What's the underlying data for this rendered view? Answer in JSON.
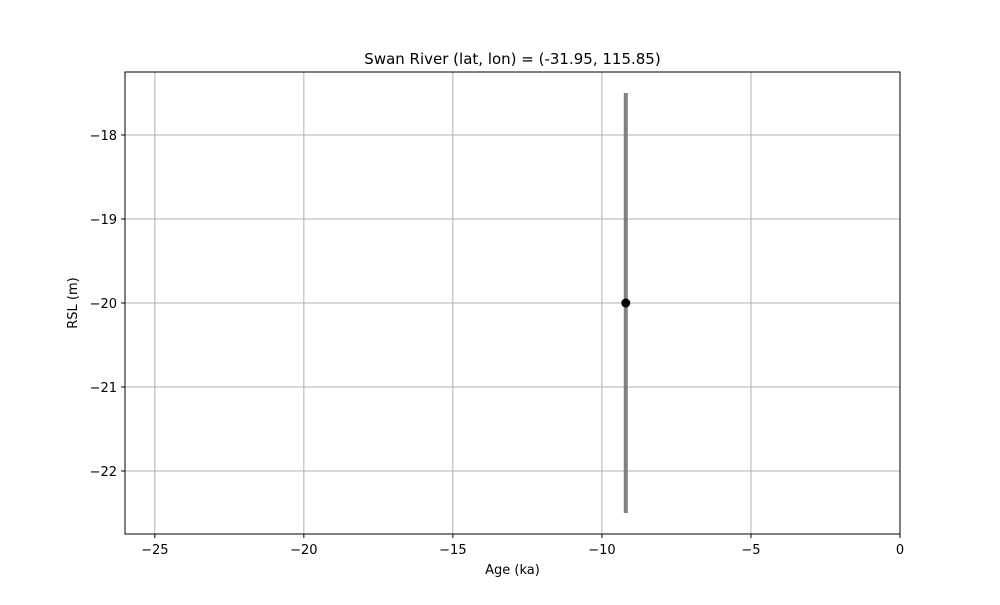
{
  "chart_data": {
    "type": "scatter",
    "title": "Swan River (lat, lon) = (-31.95, 115.85)",
    "xlabel": "Age (ka)",
    "ylabel": "RSL (m)",
    "xlim": [
      -26,
      0
    ],
    "ylim": [
      -22.75,
      -17.25
    ],
    "x_ticks": [
      -25,
      -20,
      -15,
      -10,
      -5,
      0
    ],
    "y_ticks": [
      -22,
      -21,
      -20,
      -19,
      -18
    ],
    "grid": true,
    "points": [
      {
        "x": -9.2,
        "y": -20.0,
        "y_err": 2.5
      }
    ],
    "colors": {
      "marker": "#000000",
      "errorbar": "#808080",
      "grid": "#b0b0b0",
      "axes": "#000000"
    }
  }
}
